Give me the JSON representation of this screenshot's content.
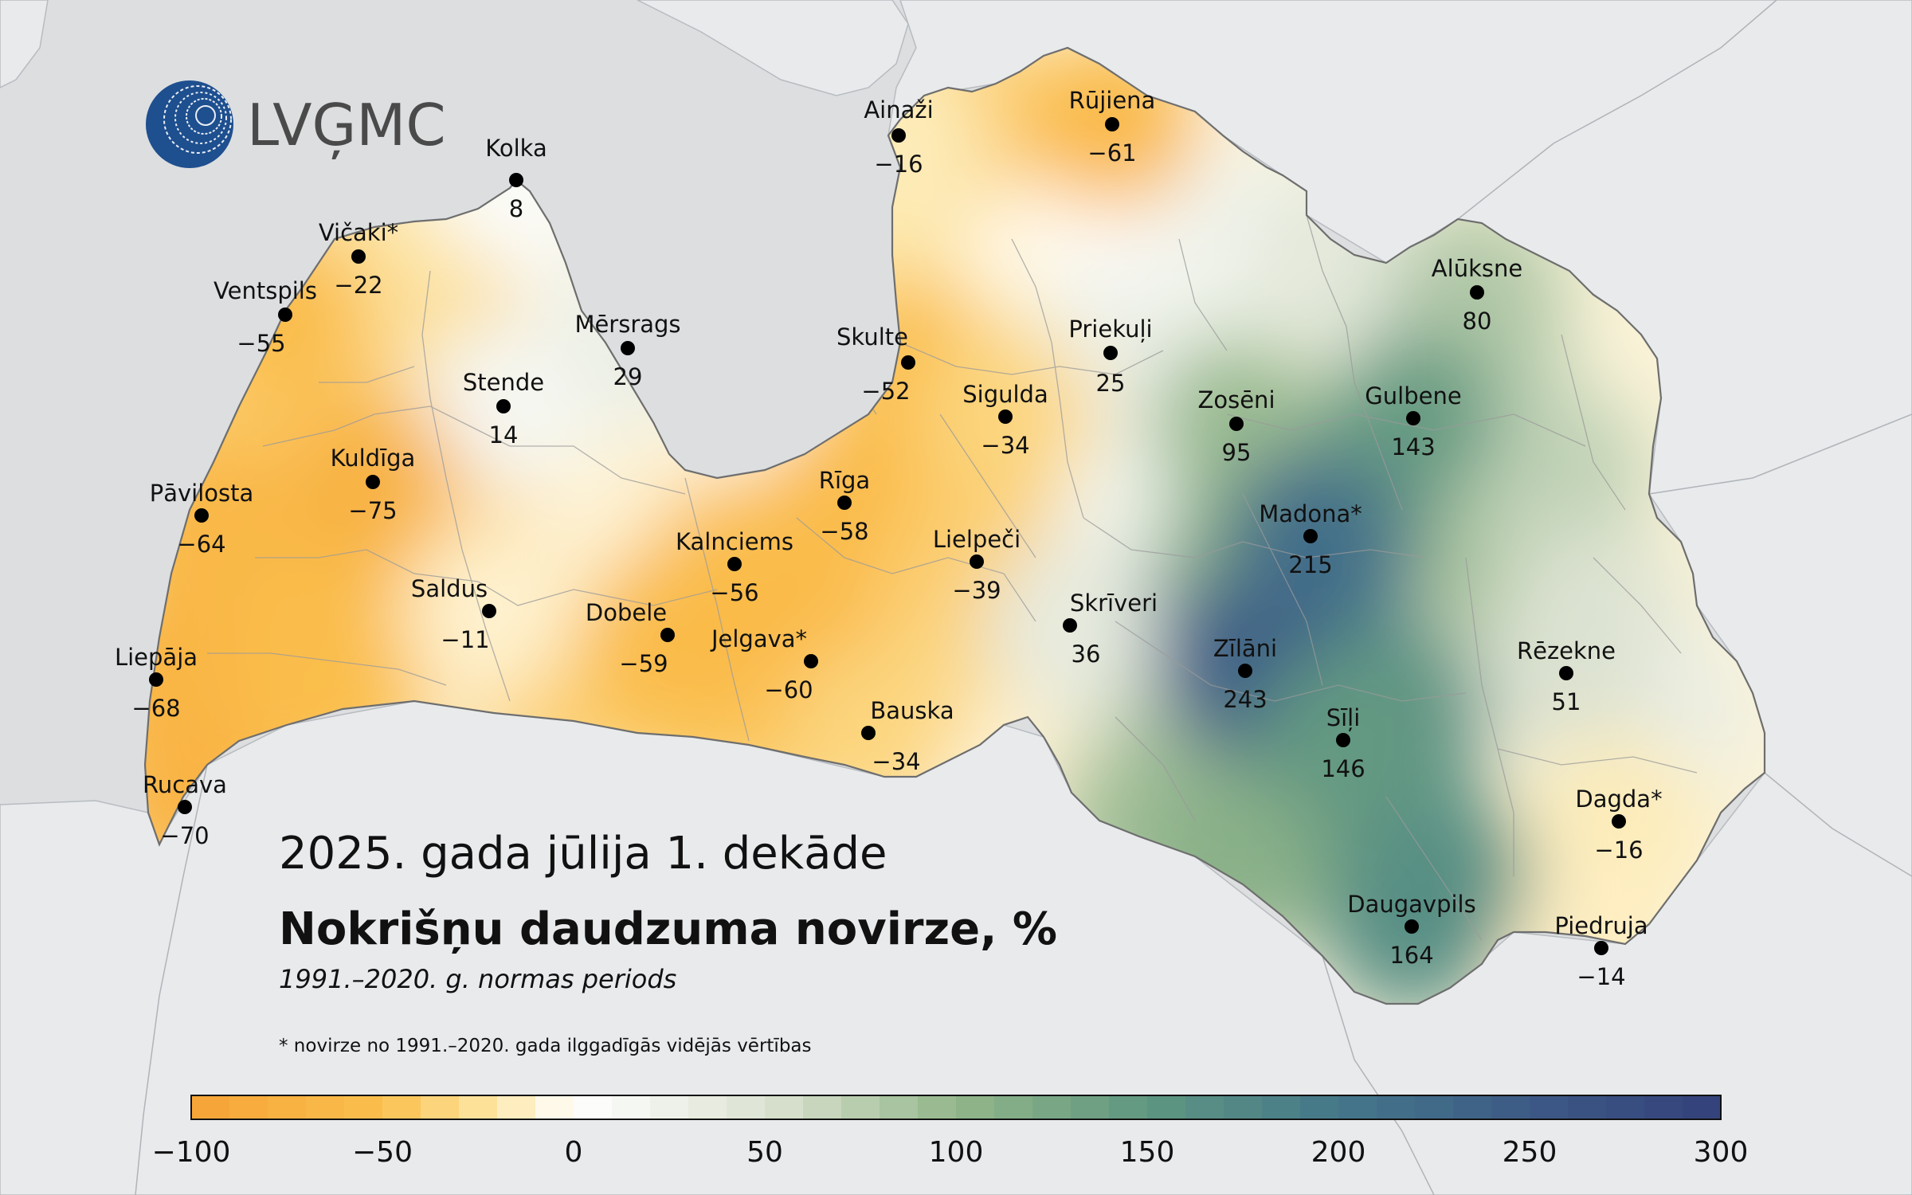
{
  "logo": {
    "text": "LVĢMC"
  },
  "title": {
    "line1": "2025. gada jūlija 1. dekāde",
    "line2": "Nokrišņu daudzuma novirze, %",
    "line3": "1991.–2020. g. normas periods"
  },
  "footnote": "* novirze no 1991.–2020. gada ilggadīgās vidējās vērtības",
  "legend": {
    "min": -100,
    "max": 300,
    "ticks": [
      {
        "value": -100,
        "label": "−100"
      },
      {
        "value": -50,
        "label": "−50"
      },
      {
        "value": 0,
        "label": "0"
      },
      {
        "value": 50,
        "label": "50"
      },
      {
        "value": 100,
        "label": "100"
      },
      {
        "value": 150,
        "label": "150"
      },
      {
        "value": 200,
        "label": "200"
      },
      {
        "value": 250,
        "label": "250"
      },
      {
        "value": 300,
        "label": "300"
      }
    ],
    "color_stops": [
      {
        "value": -100,
        "color": "#f5a335"
      },
      {
        "value": -50,
        "color": "#fbc04e"
      },
      {
        "value": -20,
        "color": "#fde7a8"
      },
      {
        "value": 0,
        "color": "#ffffff"
      },
      {
        "value": 50,
        "color": "#dde3d2"
      },
      {
        "value": 100,
        "color": "#93b68a"
      },
      {
        "value": 150,
        "color": "#5f9781"
      },
      {
        "value": 200,
        "color": "#44778a"
      },
      {
        "value": 250,
        "color": "#3d5a86"
      },
      {
        "value": 300,
        "color": "#33407a"
      }
    ]
  },
  "stations": [
    {
      "name": "Kolka",
      "value": "8"
    },
    {
      "name": "Ainaži",
      "value": "−16"
    },
    {
      "name": "Rūjiena",
      "value": "−61"
    },
    {
      "name": "Vičaki*",
      "value": "−22"
    },
    {
      "name": "Ventspils",
      "value": "−55"
    },
    {
      "name": "Mērsrags",
      "value": "29"
    },
    {
      "name": "Skulte",
      "value": "−52"
    },
    {
      "name": "Priekuļi",
      "value": "25"
    },
    {
      "name": "Alūksne",
      "value": "80"
    },
    {
      "name": "Stende",
      "value": "14"
    },
    {
      "name": "Sigulda",
      "value": "−34"
    },
    {
      "name": "Zosēni",
      "value": "95"
    },
    {
      "name": "Gulbene",
      "value": "143"
    },
    {
      "name": "Kuldīga",
      "value": "−75"
    },
    {
      "name": "Pāvilosta",
      "value": "−64"
    },
    {
      "name": "Rīga",
      "value": "−58"
    },
    {
      "name": "Madona*",
      "value": "215"
    },
    {
      "name": "Kalnciems",
      "value": "−56"
    },
    {
      "name": "Lielpeči",
      "value": "−39"
    },
    {
      "name": "Saldus",
      "value": "−11"
    },
    {
      "name": "Dobele",
      "value": "−59"
    },
    {
      "name": "Skrīveri",
      "value": "36"
    },
    {
      "name": "Jelgava*",
      "value": "−60"
    },
    {
      "name": "Zīlāni",
      "value": "243"
    },
    {
      "name": "Rēzekne",
      "value": "51"
    },
    {
      "name": "Liepāja",
      "value": "−68"
    },
    {
      "name": "Bauska",
      "value": "−34"
    },
    {
      "name": "Sīļi",
      "value": "146"
    },
    {
      "name": "Rucava",
      "value": "−70"
    },
    {
      "name": "Dagda*",
      "value": "−16"
    },
    {
      "name": "Daugavpils",
      "value": "164"
    },
    {
      "name": "Piedruja",
      "value": "−14"
    }
  ],
  "colors": {
    "sea": "#dcdee0",
    "land_outside": "#e8eaec",
    "border": "#6e6e6e",
    "logo_blue": "#1e4f8f",
    "logo_gray": "#4a4a4a",
    "dot": "#000000"
  }
}
